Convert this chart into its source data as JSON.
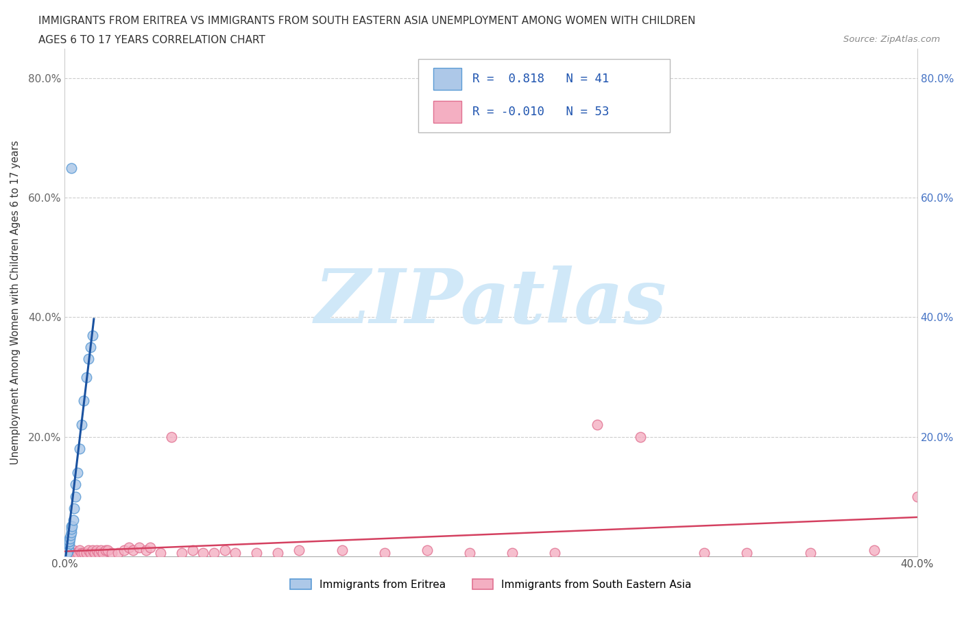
{
  "title_line1": "IMMIGRANTS FROM ERITREA VS IMMIGRANTS FROM SOUTH EASTERN ASIA UNEMPLOYMENT AMONG WOMEN WITH CHILDREN",
  "title_line2": "AGES 6 TO 17 YEARS CORRELATION CHART",
  "source": "Source: ZipAtlas.com",
  "ylabel": "Unemployment Among Women with Children Ages 6 to 17 years",
  "xlim": [
    0.0,
    0.4
  ],
  "ylim": [
    0.0,
    0.85
  ],
  "xticks": [
    0.0,
    0.05,
    0.1,
    0.15,
    0.2,
    0.25,
    0.3,
    0.35,
    0.4
  ],
  "yticks": [
    0.0,
    0.2,
    0.4,
    0.6,
    0.8
  ],
  "blue_R": 0.818,
  "blue_N": 41,
  "pink_R": -0.01,
  "pink_N": 53,
  "blue_color": "#adc8e8",
  "blue_edge": "#5b9bd5",
  "pink_color": "#f4afc2",
  "pink_edge": "#e07090",
  "blue_line_color": "#1a52a0",
  "pink_line_color": "#d44060",
  "watermark_color": "#d0e8f8",
  "legend_blue_label": "Immigrants from Eritrea",
  "legend_pink_label": "Immigrants from South Eastern Asia",
  "blue_x": [
    0.0005,
    0.0006,
    0.0007,
    0.0008,
    0.0009,
    0.001,
    0.001,
    0.001,
    0.0012,
    0.0013,
    0.0015,
    0.0015,
    0.0016,
    0.0017,
    0.0018,
    0.002,
    0.002,
    0.002,
    0.0022,
    0.0025,
    0.0028,
    0.003,
    0.003,
    0.0032,
    0.0035,
    0.004,
    0.0045,
    0.005,
    0.005,
    0.006,
    0.007,
    0.008,
    0.009,
    0.01,
    0.011,
    0.012,
    0.013,
    0.0005,
    0.0006,
    0.001,
    0.003
  ],
  "blue_y": [
    0.005,
    0.01,
    0.005,
    0.005,
    0.01,
    0.01,
    0.015,
    0.02,
    0.01,
    0.015,
    0.015,
    0.02,
    0.025,
    0.01,
    0.02,
    0.02,
    0.025,
    0.03,
    0.025,
    0.03,
    0.035,
    0.04,
    0.05,
    0.045,
    0.05,
    0.06,
    0.08,
    0.1,
    0.12,
    0.14,
    0.18,
    0.22,
    0.26,
    0.3,
    0.33,
    0.35,
    0.37,
    0.005,
    0.005,
    0.005,
    0.65
  ],
  "pink_x": [
    0.0005,
    0.001,
    0.002,
    0.003,
    0.004,
    0.005,
    0.006,
    0.007,
    0.008,
    0.009,
    0.01,
    0.011,
    0.012,
    0.013,
    0.014,
    0.015,
    0.016,
    0.017,
    0.018,
    0.019,
    0.02,
    0.022,
    0.025,
    0.028,
    0.03,
    0.032,
    0.035,
    0.038,
    0.04,
    0.045,
    0.05,
    0.055,
    0.06,
    0.065,
    0.07,
    0.075,
    0.08,
    0.09,
    0.1,
    0.11,
    0.13,
    0.15,
    0.17,
    0.19,
    0.21,
    0.23,
    0.25,
    0.27,
    0.3,
    0.32,
    0.35,
    0.38,
    0.4
  ],
  "pink_y": [
    0.005,
    0.005,
    0.005,
    0.005,
    0.01,
    0.005,
    0.005,
    0.01,
    0.005,
    0.005,
    0.005,
    0.01,
    0.005,
    0.01,
    0.005,
    0.01,
    0.005,
    0.01,
    0.005,
    0.01,
    0.01,
    0.005,
    0.005,
    0.01,
    0.015,
    0.01,
    0.015,
    0.01,
    0.015,
    0.005,
    0.2,
    0.005,
    0.01,
    0.005,
    0.005,
    0.01,
    0.005,
    0.005,
    0.005,
    0.01,
    0.01,
    0.005,
    0.01,
    0.005,
    0.005,
    0.005,
    0.22,
    0.2,
    0.005,
    0.005,
    0.005,
    0.01,
    0.1
  ]
}
